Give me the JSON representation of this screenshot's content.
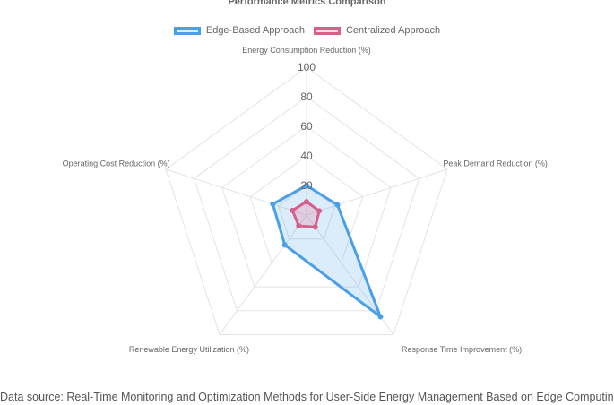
{
  "chart_data": {
    "type": "radar",
    "title": "Performance Metrics Comparison",
    "categories": [
      "Energy Consumption Reduction (%)",
      "Peak Demand Reduction (%)",
      "Response Time Improvement (%)",
      "Renewable Energy Utilization (%)",
      "Operating Cost Reduction (%)"
    ],
    "series": [
      {
        "name": "Edge-Based Approach",
        "values": [
          20,
          22,
          85,
          25,
          24
        ]
      },
      {
        "name": "Centralized Approach",
        "values": [
          9,
          9,
          10,
          9,
          10
        ]
      }
    ],
    "rlim": [
      0,
      100
    ],
    "ticks": [
      20,
      40,
      60,
      80,
      100
    ],
    "grid": true,
    "legend_position": "top",
    "colors": {
      "Edge-Based Approach": {
        "line": "#4a9fe8",
        "fill": "rgba(74,159,232,0.2)"
      },
      "Centralized Approach": {
        "line": "#d6608a",
        "fill": "rgba(236,110,150,0.25)"
      }
    }
  },
  "source_note": "Data source: Real-Time Monitoring and Optimization Methods for User-Side Energy Management Based on Edge Computing"
}
